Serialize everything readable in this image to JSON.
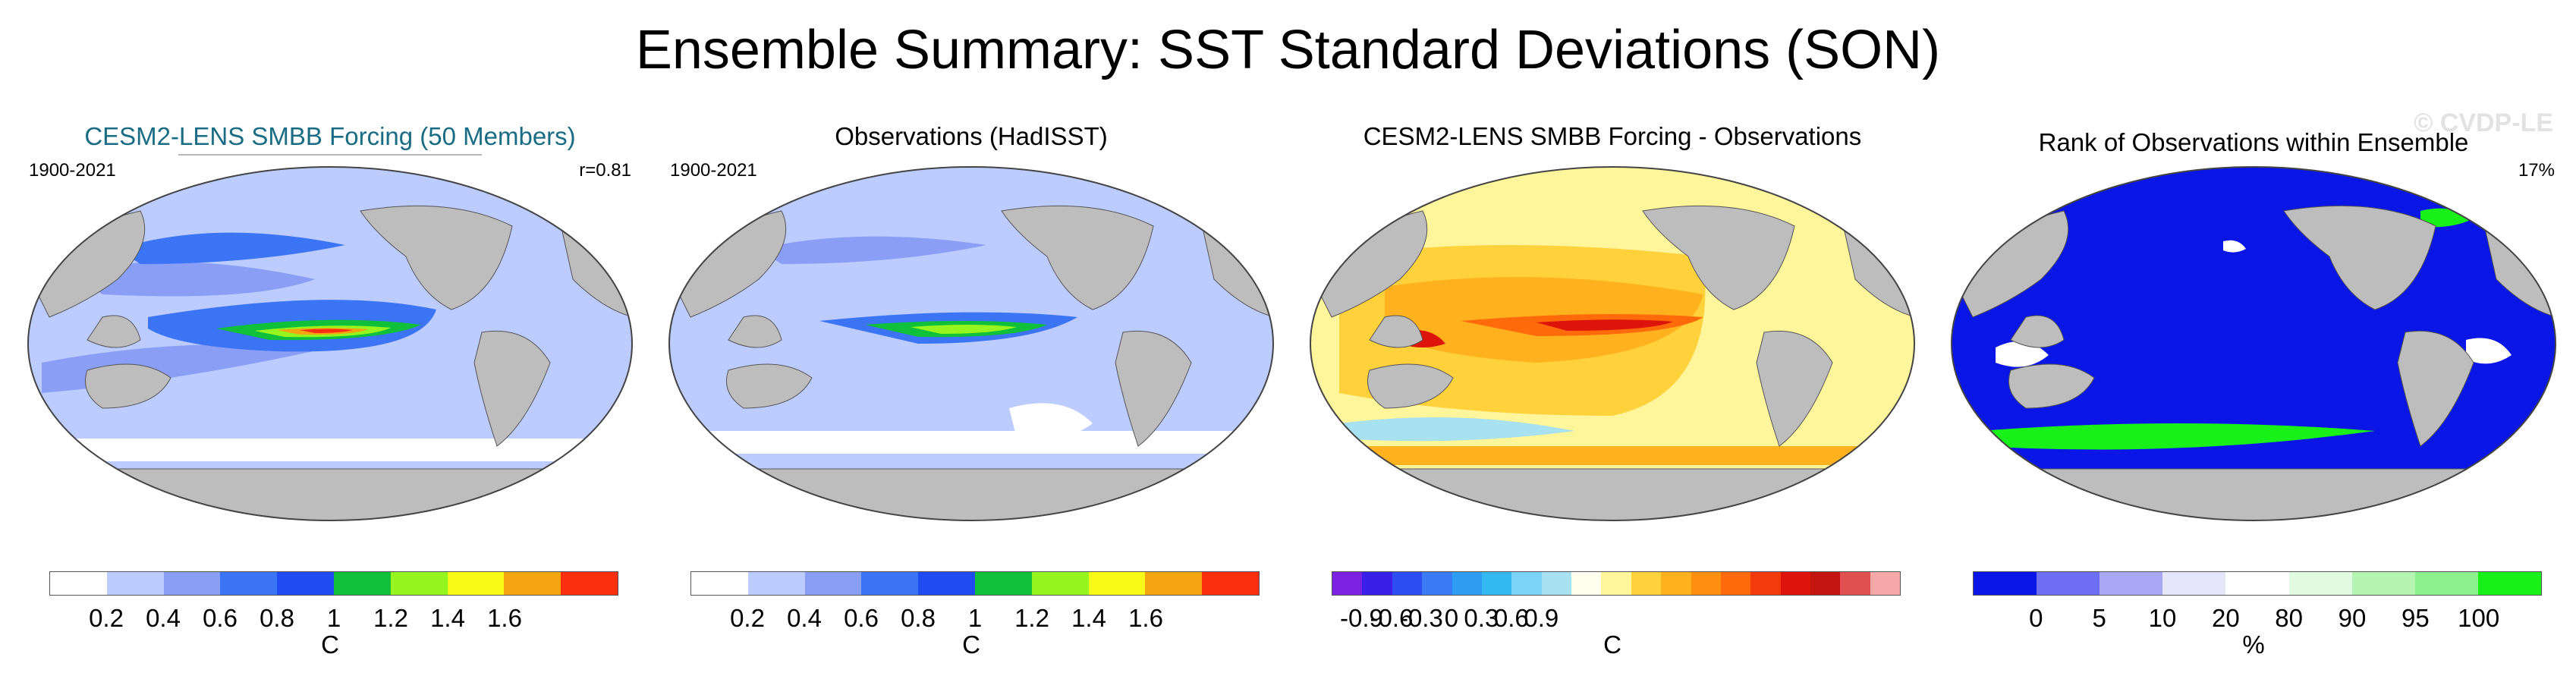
{
  "title": "Ensemble Summary: SST Standard Deviations (SON)",
  "colors": {
    "land": "#bdbdbd",
    "ocean_fill": [
      "#bcccff",
      "#bcccff",
      "#f6d27a",
      "#0a16dc"
    ],
    "outline": "#555555"
  },
  "panels": [
    {
      "title": "CESM2-LENS SMBB Forcing (50 Members)",
      "years": "1900-2021",
      "stat": "r=0.81",
      "unit": "C",
      "legend": {
        "colors": [
          "#ffffff",
          "#bcccff",
          "#8a9ef6",
          "#3c74f6",
          "#1f4bf0",
          "#10bf3a",
          "#96f51e",
          "#fafa19",
          "#f5a50f",
          "#fa2f10"
        ],
        "ticks": [
          "0.2",
          "0.4",
          "0.6",
          "0.8",
          "1",
          "1.2",
          "1.4",
          "1.6"
        ]
      }
    },
    {
      "title": "Observations (HadISST)",
      "years": "1900-2021",
      "stat": "",
      "unit": "C",
      "legend": {
        "colors": [
          "#ffffff",
          "#bcccff",
          "#8a9ef6",
          "#3c74f6",
          "#1f4bf0",
          "#10bf3a",
          "#96f51e",
          "#fafa19",
          "#f5a50f",
          "#fa2f10"
        ],
        "ticks": [
          "0.2",
          "0.4",
          "0.6",
          "0.8",
          "1",
          "1.2",
          "1.4",
          "1.6"
        ]
      }
    },
    {
      "title": "CESM2-LENS SMBB Forcing - Observations",
      "years": "",
      "stat": "",
      "unit": "C",
      "legend": {
        "colors": [
          "#7a22e0",
          "#3a1fe8",
          "#2d4df0",
          "#3a7af2",
          "#2e9cf0",
          "#34b8f2",
          "#7bd4f8",
          "#a8e2f0",
          "#fffff0",
          "#fff59a",
          "#ffd23c",
          "#ffb21e",
          "#ff8f0f",
          "#ff6a0a",
          "#f23a0a",
          "#dc140a",
          "#c3140f",
          "#e05050",
          "#f5a8a8"
        ],
        "ticks": [
          "-0.9",
          "-0.6",
          "-0.3",
          "0",
          "0.3",
          "0.6",
          "0.9"
        ]
      }
    },
    {
      "title": "Rank of Observations within Ensemble",
      "years": "",
      "stat": "17%",
      "unit": "%",
      "watermark": "© CVDP-LE",
      "legend": {
        "colors": [
          "#0a16e6",
          "#6e6ef2",
          "#a8a8f5",
          "#e6e6fa",
          "#ffffff",
          "#e2fae2",
          "#b4f5b4",
          "#8cf08c",
          "#19f019"
        ],
        "ticks": [
          "0",
          "5",
          "10",
          "20",
          "80",
          "90",
          "95",
          "100"
        ]
      }
    }
  ]
}
